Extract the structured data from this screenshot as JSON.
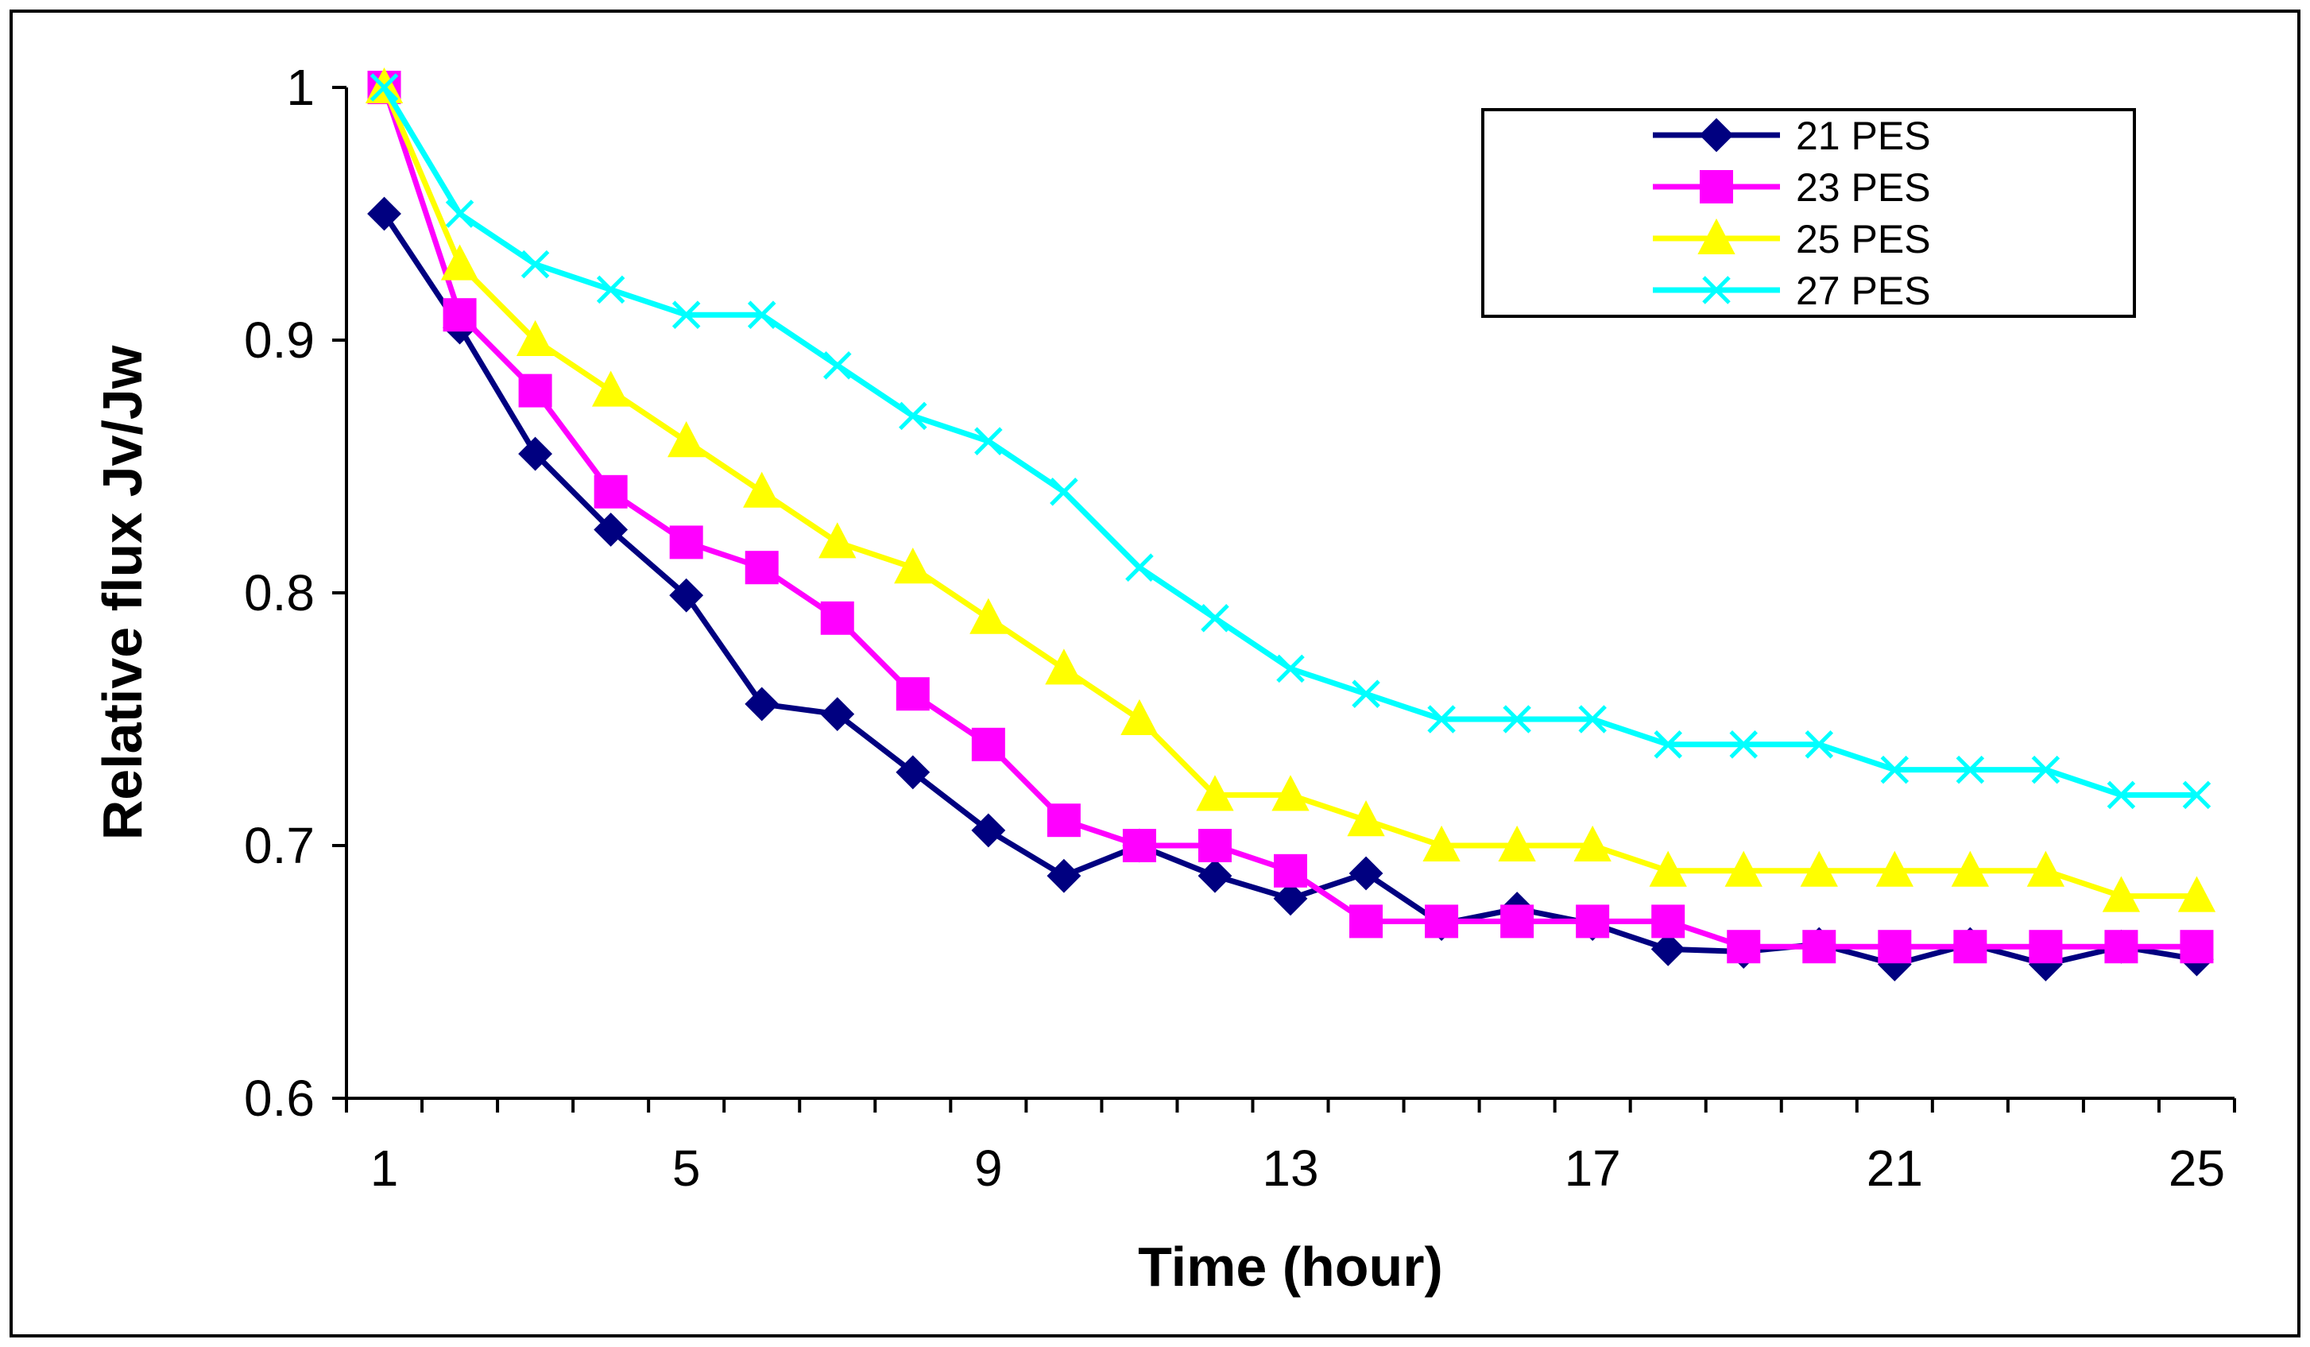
{
  "chart_data": {
    "type": "line",
    "title": "",
    "xlabel": "Time (hour)",
    "ylabel": "Relative flux Jv/Jw",
    "xlim": [
      0.5,
      25.5
    ],
    "ylim": [
      0.6,
      1.0
    ],
    "x_ticks": [
      1,
      5,
      9,
      13,
      17,
      21,
      25
    ],
    "y_ticks": [
      0.6,
      0.7,
      0.8,
      0.9,
      1
    ],
    "y_tick_labels": [
      "0.6",
      "0.7",
      "0.8",
      "0.9",
      "1"
    ],
    "grid": false,
    "legend_position": "top-right",
    "x": [
      1,
      2,
      3,
      4,
      5,
      6,
      7,
      8,
      9,
      10,
      11,
      12,
      13,
      14,
      15,
      16,
      17,
      18,
      19,
      20,
      21,
      22,
      23,
      24,
      25
    ],
    "series": [
      {
        "name": "21 PES",
        "color": "#000080",
        "marker": "diamond",
        "values": [
          0.95,
          0.905,
          0.855,
          0.825,
          0.799,
          0.756,
          0.752,
          0.729,
          0.706,
          0.688,
          0.7,
          0.688,
          0.679,
          0.689,
          0.669,
          0.675,
          0.669,
          0.659,
          0.658,
          0.661,
          0.653,
          0.661,
          0.653,
          0.66,
          0.655
        ]
      },
      {
        "name": "23 PES",
        "color": "#FF00FF",
        "marker": "square",
        "values": [
          1.0,
          0.91,
          0.88,
          0.84,
          0.82,
          0.81,
          0.79,
          0.76,
          0.74,
          0.71,
          0.7,
          0.7,
          0.69,
          0.67,
          0.67,
          0.67,
          0.67,
          0.67,
          0.66,
          0.66,
          0.66,
          0.66,
          0.66,
          0.66,
          0.66
        ]
      },
      {
        "name": "25 PES",
        "color": "#FFFF00",
        "marker": "triangle",
        "values": [
          1.0,
          0.93,
          0.9,
          0.88,
          0.86,
          0.84,
          0.82,
          0.81,
          0.79,
          0.77,
          0.75,
          0.72,
          0.72,
          0.71,
          0.7,
          0.7,
          0.7,
          0.69,
          0.69,
          0.69,
          0.69,
          0.69,
          0.69,
          0.68,
          0.68
        ]
      },
      {
        "name": "27 PES",
        "color": "#00FFFF",
        "marker": "x",
        "values": [
          1.0,
          0.95,
          0.93,
          0.92,
          0.91,
          0.91,
          0.89,
          0.87,
          0.86,
          0.84,
          0.81,
          0.79,
          0.77,
          0.76,
          0.75,
          0.75,
          0.75,
          0.74,
          0.74,
          0.74,
          0.73,
          0.73,
          0.73,
          0.72,
          0.72
        ]
      }
    ]
  }
}
